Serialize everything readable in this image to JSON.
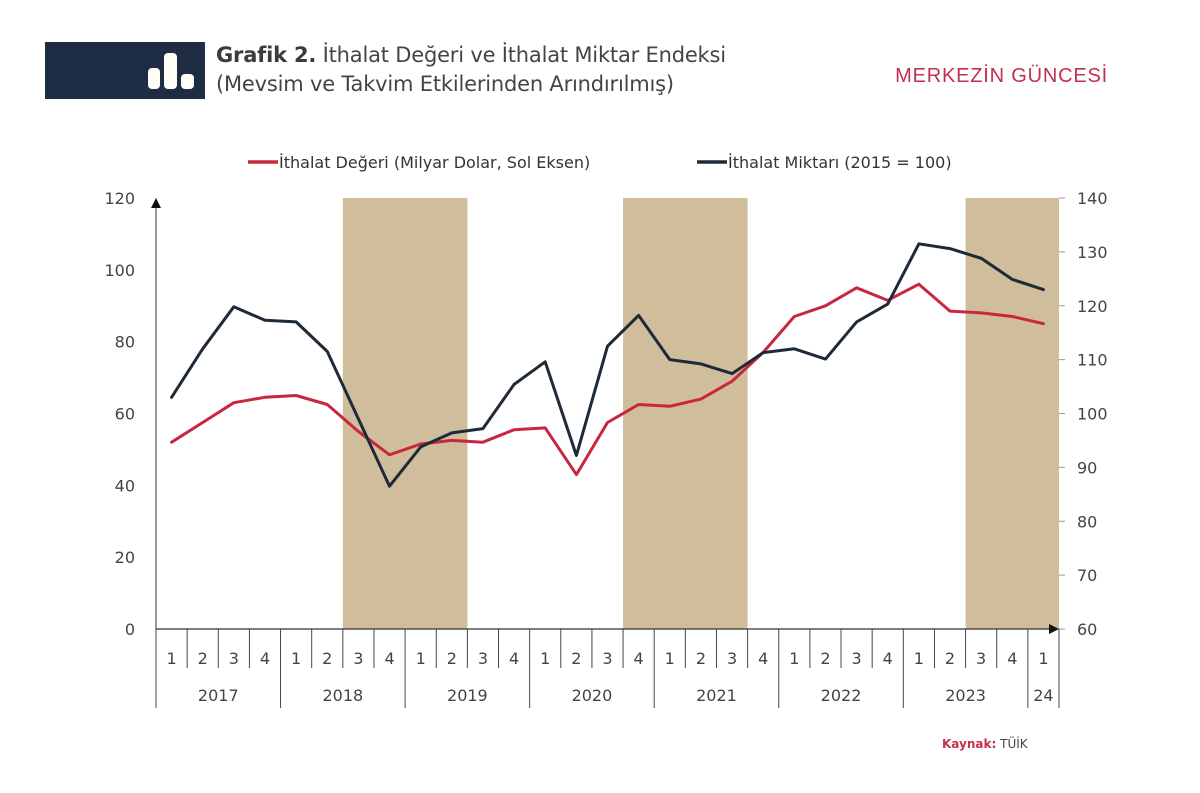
{
  "header": {
    "title_prefix": "Grafik 2.",
    "title_line1": " İthalat Değeri ve İthalat Miktar Endeksi",
    "title_line2": "(Mevsim ve Takvim Etkilerinden Arındırılmış)",
    "icon": "bar-chart-icon",
    "brand": "MERKEZİN GÜNCESİ"
  },
  "source": {
    "label": "Kaynak:",
    "value": "TÜİK"
  },
  "colors": {
    "value_line": "#c8283f",
    "volume_line": "#1f2a38",
    "shading": "#cfbd9b",
    "header_bg": "#1f2d44",
    "brand": "#c0304f"
  },
  "chart_data": {
    "type": "line",
    "title": "İthalat Değeri ve İthalat Miktar Endeksi (Mevsim ve Takvim Etkilerinden Arındırılmış)",
    "xlabel": "",
    "ylabel_left": "",
    "ylabel_right": "",
    "categories": [
      "2017Q1",
      "2017Q2",
      "2017Q3",
      "2017Q4",
      "2018Q1",
      "2018Q2",
      "2018Q3",
      "2018Q4",
      "2019Q1",
      "2019Q2",
      "2019Q3",
      "2019Q4",
      "2020Q1",
      "2020Q2",
      "2020Q3",
      "2020Q4",
      "2021Q1",
      "2021Q2",
      "2021Q3",
      "2021Q4",
      "2022Q1",
      "2022Q2",
      "2022Q3",
      "2022Q4",
      "2023Q1",
      "2023Q2",
      "2023Q3",
      "2023Q4",
      "2024Q1"
    ],
    "quarter_labels": [
      "1",
      "2",
      "3",
      "4",
      "1",
      "2",
      "3",
      "4",
      "1",
      "2",
      "3",
      "4",
      "1",
      "2",
      "3",
      "4",
      "1",
      "2",
      "3",
      "4",
      "1",
      "2",
      "3",
      "4",
      "1",
      "2",
      "3",
      "4",
      "1"
    ],
    "year_groups": [
      {
        "label": "2017",
        "quarters": 4
      },
      {
        "label": "2018",
        "quarters": 4
      },
      {
        "label": "2019",
        "quarters": 4
      },
      {
        "label": "2020",
        "quarters": 4
      },
      {
        "label": "2021",
        "quarters": 4
      },
      {
        "label": "2022",
        "quarters": 4
      },
      {
        "label": "2023",
        "quarters": 4
      },
      {
        "label": "24",
        "quarters": 1
      }
    ],
    "left_axis": {
      "ylim": [
        0,
        120
      ],
      "ticks": [
        0,
        20,
        40,
        60,
        80,
        100,
        120
      ]
    },
    "right_axis": {
      "ylim": [
        60,
        140
      ],
      "ticks": [
        60,
        70,
        80,
        90,
        100,
        110,
        120,
        130,
        140
      ]
    },
    "series": [
      {
        "name": "İthalat Değeri (Milyar Dolar, Sol Eksen)",
        "axis": "left",
        "values": [
          52,
          57.5,
          63,
          64.5,
          65,
          62.5,
          55,
          48.5,
          51.5,
          52.5,
          52,
          55.5,
          56,
          43,
          57.5,
          62.5,
          62,
          64,
          69,
          77,
          87,
          90,
          95,
          91.5,
          96,
          88.5,
          88,
          87,
          85
        ]
      },
      {
        "name": "İthalat Miktarı (2015 = 100)",
        "axis": "right",
        "values": [
          103,
          112,
          119.8,
          117.3,
          117,
          111.5,
          99,
          86.5,
          93.8,
          96.4,
          97.2,
          105.4,
          109.6,
          92.2,
          112.5,
          118.2,
          110,
          109.2,
          107.4,
          111.3,
          112,
          110.1,
          117,
          120.3,
          131.5,
          130.6,
          128.8,
          124.9,
          123
        ]
      }
    ],
    "shaded_periods": [
      {
        "from": "2018Q3",
        "to": "2019Q2"
      },
      {
        "from": "2020Q4",
        "to": "2021Q3"
      },
      {
        "from": "2023Q3",
        "to": "2024Q1"
      }
    ],
    "legend_position": "top-center",
    "grid": false
  }
}
